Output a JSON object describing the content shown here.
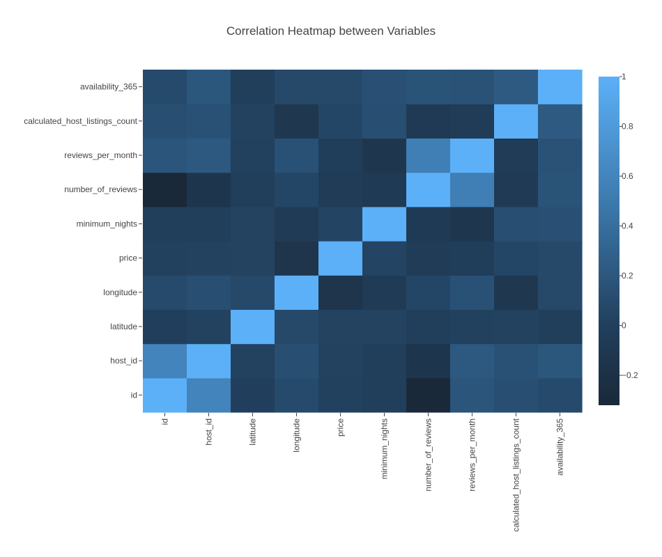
{
  "chart_data": {
    "type": "heatmap",
    "title": "Correlation Heatmap between Variables",
    "xlabel": "",
    "ylabel": "",
    "x": [
      "id",
      "host_id",
      "latitude",
      "longitude",
      "price",
      "minimum_nights",
      "number_of_reviews",
      "reviews_per_month",
      "calculated_host_listings_count",
      "availability_365"
    ],
    "y": [
      "id",
      "host_id",
      "latitude",
      "longitude",
      "price",
      "minimum_nights",
      "number_of_reviews",
      "reviews_per_month",
      "calculated_host_listings_count",
      "availability_365"
    ],
    "z": [
      [
        1.0,
        0.59,
        0.0,
        0.09,
        0.01,
        -0.01,
        -0.32,
        0.18,
        0.13,
        0.09
      ],
      [
        0.59,
        1.0,
        0.02,
        0.13,
        0.02,
        -0.02,
        -0.14,
        0.21,
        0.15,
        0.2
      ],
      [
        0.0,
        0.02,
        1.0,
        0.08,
        0.03,
        0.03,
        -0.01,
        0.01,
        0.02,
        -0.01
      ],
      [
        0.09,
        0.13,
        0.08,
        1.0,
        -0.15,
        -0.06,
        0.06,
        0.15,
        -0.11,
        0.08
      ],
      [
        0.01,
        0.02,
        0.03,
        -0.15,
        1.0,
        0.04,
        -0.05,
        -0.03,
        0.06,
        0.08
      ],
      [
        -0.01,
        -0.02,
        0.03,
        -0.06,
        0.04,
        1.0,
        -0.08,
        -0.12,
        0.13,
        0.14
      ],
      [
        -0.32,
        -0.14,
        -0.01,
        0.06,
        -0.05,
        -0.08,
        1.0,
        0.55,
        -0.07,
        0.17
      ],
      [
        0.18,
        0.21,
        0.01,
        0.15,
        -0.03,
        -0.12,
        0.55,
        1.0,
        -0.05,
        0.16
      ],
      [
        0.13,
        0.15,
        0.02,
        -0.11,
        0.06,
        0.13,
        -0.07,
        -0.05,
        1.0,
        0.23
      ],
      [
        0.09,
        0.2,
        -0.01,
        0.08,
        0.08,
        0.14,
        0.17,
        0.16,
        0.23,
        1.0
      ]
    ],
    "zmin": -0.32,
    "zmax": 1.0,
    "colorscale": [
      [
        0,
        "#1a2939"
      ],
      [
        0.24,
        "#213f5c"
      ],
      [
        0.6,
        "#3b77aa"
      ],
      [
        1,
        "#5cb0f7"
      ]
    ],
    "colorbar_ticks": [
      1,
      0.8,
      0.6,
      0.4,
      0.2,
      0,
      -0.2
    ],
    "colorbar_tick_labels": [
      "1",
      "0.8",
      "0.6",
      "0.4",
      "0.2",
      "0",
      "−0.2"
    ],
    "grid": false,
    "legend": "colorbar-right"
  }
}
